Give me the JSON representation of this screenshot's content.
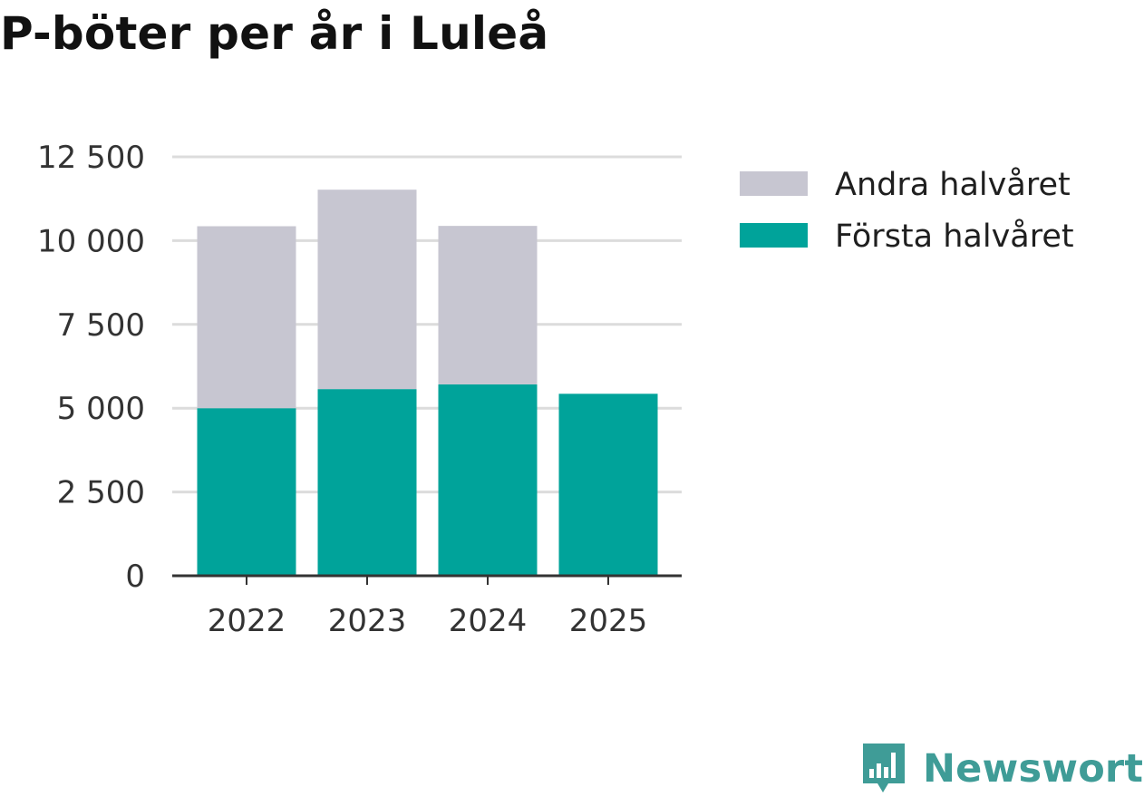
{
  "title": "P-böter per år i Luleå",
  "chart_data": {
    "type": "bar",
    "stacked": true,
    "categories": [
      "2022",
      "2023",
      "2024",
      "2025"
    ],
    "series": [
      {
        "name": "Första halvåret",
        "color": "#00a39a",
        "values": [
          5000,
          5570,
          5710,
          5430
        ]
      },
      {
        "name": "Andra halvåret",
        "color": "#c7c6d1",
        "values": [
          5430,
          5950,
          4730,
          0
        ]
      }
    ],
    "legend_order": [
      "Andra halvåret",
      "Första halvåret"
    ],
    "ylim": [
      0,
      12500
    ],
    "yticks": [
      0,
      2500,
      5000,
      7500,
      10000,
      12500
    ],
    "ytick_labels": [
      "0",
      "2 500",
      "5 000",
      "7 500",
      "10 000",
      "12 500"
    ],
    "xlabel": "",
    "ylabel": "",
    "grid": true,
    "legend_position": "right"
  },
  "logo": {
    "text": "Newsworthy",
    "color": "#3f9c97"
  }
}
